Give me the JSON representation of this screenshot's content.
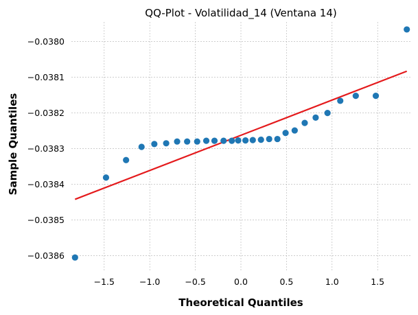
{
  "chart_data": {
    "type": "scatter",
    "title": "QQ-Plot - Volatilidad_14 (Ventana 14)",
    "xlabel": "Theoretical Quantiles",
    "ylabel": "Sample Quantiles",
    "xlim": [
      -1.86,
      1.86
    ],
    "ylim": [
      -0.038645,
      -0.037945
    ],
    "x_ticks": [
      -1.5,
      -1.0,
      -0.5,
      0.0,
      0.5,
      1.0,
      1.5
    ],
    "x_tick_labels": [
      "−1.5",
      "−1.0",
      "−0.5",
      "0.0",
      "0.5",
      "1.0",
      "1.5"
    ],
    "y_ticks": [
      -0.0386,
      -0.0385,
      -0.0384,
      -0.0383,
      -0.0382,
      -0.0381,
      -0.038
    ],
    "y_tick_labels": [
      "−0.0386",
      "−0.0385",
      "−0.0384",
      "−0.0383",
      "−0.0382",
      "−0.0381",
      "−0.0380"
    ],
    "grid": true,
    "point_color": "#1f77b4",
    "line_color": "#e41a1c",
    "points": [
      {
        "x": -1.82,
        "y": -0.038605
      },
      {
        "x": -1.48,
        "y": -0.038381
      },
      {
        "x": -1.26,
        "y": -0.038332
      },
      {
        "x": -1.09,
        "y": -0.038295
      },
      {
        "x": -0.95,
        "y": -0.038287
      },
      {
        "x": -0.82,
        "y": -0.038285
      },
      {
        "x": -0.7,
        "y": -0.03828
      },
      {
        "x": -0.59,
        "y": -0.03828
      },
      {
        "x": -0.48,
        "y": -0.03828
      },
      {
        "x": -0.38,
        "y": -0.038278
      },
      {
        "x": -0.29,
        "y": -0.038278
      },
      {
        "x": -0.19,
        "y": -0.038278
      },
      {
        "x": -0.1,
        "y": -0.038278
      },
      {
        "x": -0.03,
        "y": -0.038277
      },
      {
        "x": 0.05,
        "y": -0.038277
      },
      {
        "x": 0.13,
        "y": -0.038276
      },
      {
        "x": 0.22,
        "y": -0.038275
      },
      {
        "x": 0.31,
        "y": -0.038273
      },
      {
        "x": 0.4,
        "y": -0.038273
      },
      {
        "x": 0.49,
        "y": -0.038256
      },
      {
        "x": 0.59,
        "y": -0.038249
      },
      {
        "x": 0.7,
        "y": -0.038228
      },
      {
        "x": 0.82,
        "y": -0.038213
      },
      {
        "x": 0.95,
        "y": -0.0382
      },
      {
        "x": 1.09,
        "y": -0.038166
      },
      {
        "x": 1.26,
        "y": -0.038152
      },
      {
        "x": 1.48,
        "y": -0.038152
      },
      {
        "x": 1.82,
        "y": -0.037966
      }
    ],
    "reference_line": {
      "x": [
        -1.82,
        1.82
      ],
      "y": [
        -0.038442,
        -0.038083
      ]
    }
  }
}
